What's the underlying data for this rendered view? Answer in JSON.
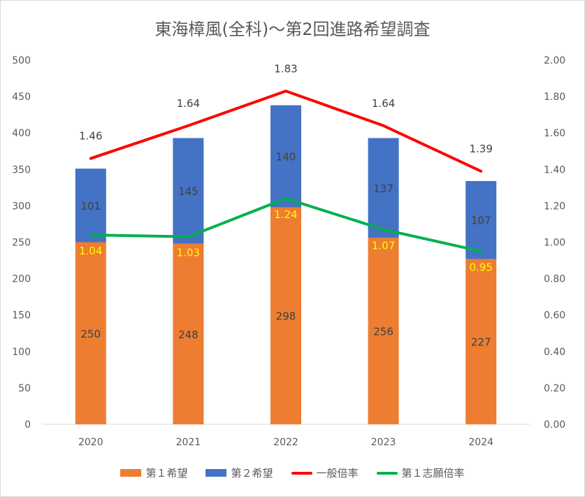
{
  "chart_data": {
    "type": "bar",
    "title": "東海樟風(全科)～第2回進路希望調査",
    "categories": [
      "2020",
      "2021",
      "2022",
      "2023",
      "2024"
    ],
    "series": [
      {
        "name": "第１希望",
        "kind": "stacked-bar",
        "axis": "left",
        "color": "#ed7d31",
        "values": [
          250,
          248,
          298,
          256,
          227
        ]
      },
      {
        "name": "第２希望",
        "kind": "stacked-bar",
        "axis": "left",
        "color": "#4472c4",
        "values": [
          101,
          145,
          140,
          137,
          107
        ]
      },
      {
        "name": "一般倍率",
        "kind": "line",
        "axis": "right",
        "color": "#ff0000",
        "values": [
          1.46,
          1.64,
          1.83,
          1.64,
          1.39
        ]
      },
      {
        "name": "第１志願倍率",
        "kind": "line",
        "axis": "right",
        "color": "#00b050",
        "values": [
          1.04,
          1.03,
          1.24,
          1.07,
          0.95
        ]
      }
    ],
    "y_left": {
      "ylim": [
        0,
        500
      ],
      "ticks": [
        "0",
        "50",
        "100",
        "150",
        "200",
        "250",
        "300",
        "350",
        "400",
        "450",
        "500"
      ]
    },
    "y_right": {
      "ylim": [
        0,
        2.0
      ],
      "ticks": [
        "0.00",
        "0.20",
        "0.40",
        "0.60",
        "0.80",
        "1.00",
        "1.20",
        "1.40",
        "1.60",
        "1.80",
        "2.00"
      ]
    },
    "label_colors": {
      "green_line_labels": "#ffff00",
      "default": "#404040",
      "bar_labels": "#404040"
    },
    "grid": false,
    "legend_position": "bottom"
  }
}
